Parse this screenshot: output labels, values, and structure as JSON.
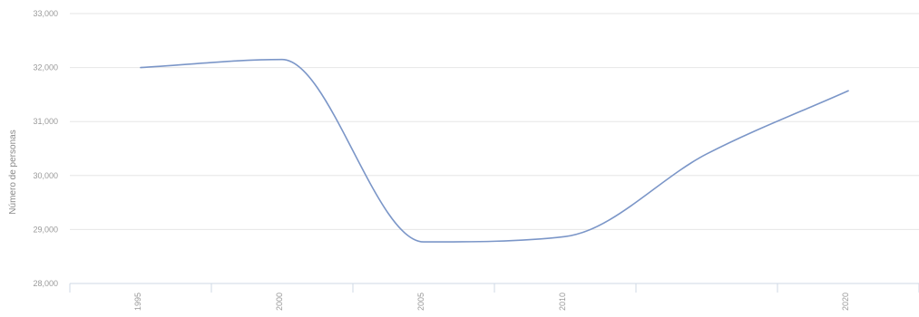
{
  "chart_data": {
    "type": "line",
    "title": "",
    "xlabel": "",
    "ylabel": "Número de personas",
    "x": [
      1995,
      2000,
      2005,
      2010,
      2015,
      2020
    ],
    "series": [
      {
        "values": [
          32000,
          32150,
          28770,
          28870,
          30400,
          31570
        ]
      }
    ],
    "x_ticks": [
      "1995",
      "2000",
      "2005",
      "2010",
      "2020"
    ],
    "y_ticks": [
      "28,000",
      "29,000",
      "30,000",
      "31,000",
      "32,000",
      "33,000"
    ],
    "ylim": [
      28000,
      33000
    ],
    "xlim": [
      1992.5,
      2022.5
    ],
    "grid": true,
    "legend": "none",
    "colors": {
      "line": "#7b96c8"
    }
  }
}
